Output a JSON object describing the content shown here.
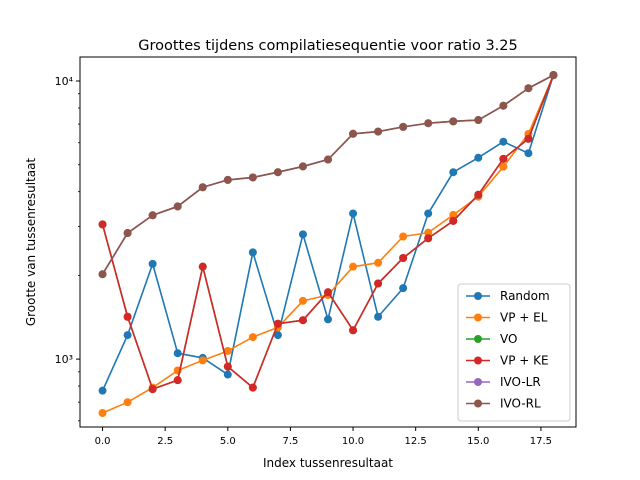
{
  "chart_data": {
    "type": "line",
    "title": "Groottes tijdens compilatiesequentie voor ratio 3.25",
    "xlabel": "Index tussenresultaat",
    "ylabel": "Grootte van tussenresultaat",
    "xscale": "linear",
    "yscale": "log",
    "xlim": [
      -0.9,
      18.9
    ],
    "ylim": [
      570,
      12200
    ],
    "x_ticks": [
      0.0,
      2.5,
      5.0,
      7.5,
      10.0,
      12.5,
      15.0,
      17.5
    ],
    "x_tick_labels": [
      "0.0",
      "2.5",
      "5.0",
      "7.5",
      "10.0",
      "12.5",
      "15.0",
      "17.5"
    ],
    "y_ticks": [
      1000,
      10000
    ],
    "y_tick_labels": [
      "10³",
      "10⁴"
    ],
    "legend_position": "lower-right",
    "grid": false,
    "x": [
      0,
      1,
      2,
      3,
      4,
      5,
      6,
      7,
      8,
      9,
      10,
      11,
      12,
      13,
      14,
      15,
      16,
      17,
      18
    ],
    "series": [
      {
        "name": "Random",
        "color": "#1f77b4",
        "values": [
          770,
          1220,
          2200,
          1050,
          1010,
          880,
          2420,
          1220,
          2810,
          1390,
          3340,
          1420,
          1800,
          3340,
          4700,
          5300,
          6050,
          5500,
          10500
        ]
      },
      {
        "name": "VP + EL",
        "color": "#ff7f0e",
        "values": [
          640,
          700,
          790,
          910,
          990,
          1070,
          1200,
          1300,
          1620,
          1700,
          2150,
          2220,
          2760,
          2850,
          3300,
          3840,
          4920,
          6450,
          10500
        ]
      },
      {
        "name": "VO",
        "color": "#2ca02c",
        "values": [
          3050,
          1420,
          780,
          840,
          2150,
          940,
          790,
          1340,
          1380,
          1740,
          1270,
          1870,
          2310,
          2720,
          3140,
          3900,
          5250,
          6200,
          10500
        ]
      },
      {
        "name": "VP + KE",
        "color": "#d62728",
        "values": [
          3050,
          1420,
          780,
          840,
          2150,
          940,
          790,
          1340,
          1380,
          1740,
          1270,
          1870,
          2310,
          2720,
          3140,
          3900,
          5250,
          6200,
          10500
        ]
      },
      {
        "name": "IVO-LR",
        "color": "#9467bd",
        "values": [
          2020,
          2840,
          3290,
          3540,
          4150,
          4410,
          4500,
          4700,
          4930,
          5220,
          6460,
          6580,
          6840,
          7050,
          7160,
          7240,
          8150,
          9420,
          10500
        ]
      },
      {
        "name": "IVO-RL",
        "color": "#8c564b",
        "values": [
          2020,
          2840,
          3290,
          3540,
          4150,
          4410,
          4500,
          4700,
          4930,
          5220,
          6460,
          6580,
          6840,
          7050,
          7160,
          7240,
          8150,
          9420,
          10500
        ]
      }
    ]
  }
}
